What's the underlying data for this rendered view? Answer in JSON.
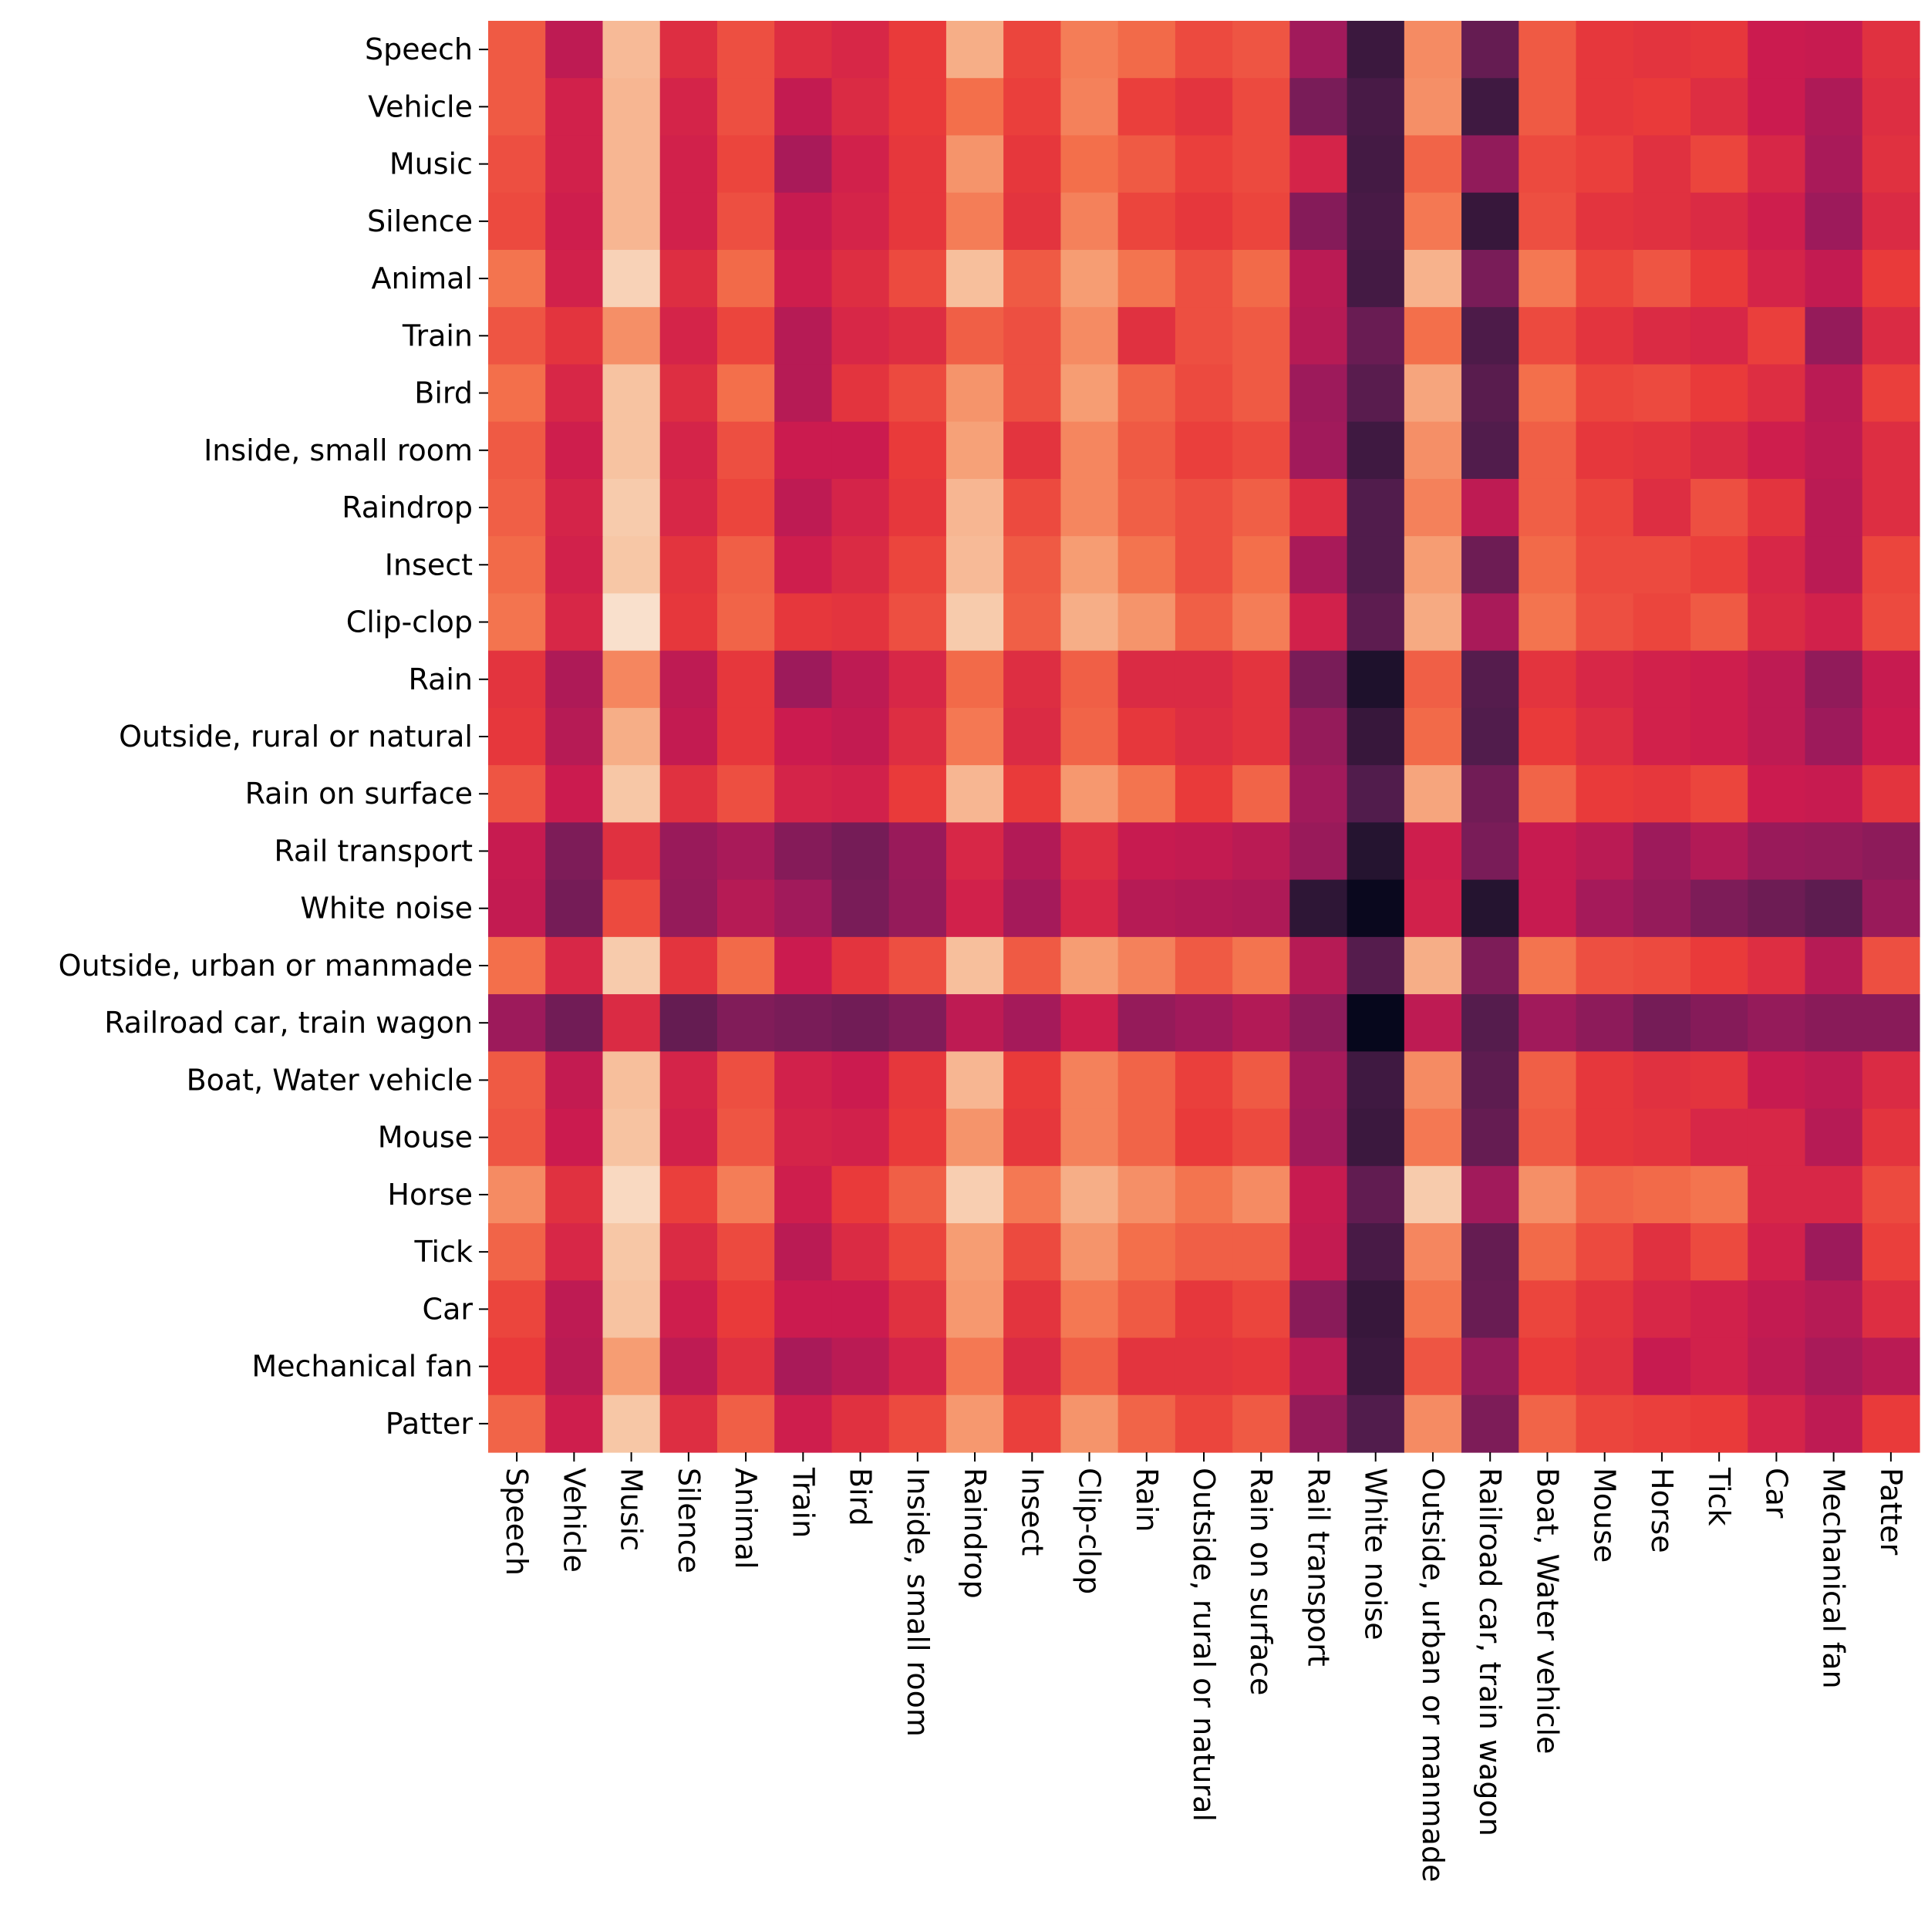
{
  "chart_data": {
    "type": "heatmap",
    "title": "",
    "xlabel": "",
    "ylabel": "",
    "colormap": "rocket",
    "value_range": [
      0,
      1
    ],
    "grid": false,
    "legend": "none",
    "rows": [
      "Speech",
      "Vehicle",
      "Music",
      "Silence",
      "Animal",
      "Train",
      "Bird",
      "Inside, small room",
      "Raindrop",
      "Insect",
      "Clip-clop",
      "Rain",
      "Outside, rural or natural",
      "Rain on surface",
      "Rail transport",
      "White noise",
      "Outside, urban or manmade",
      "Railroad car, train wagon",
      "Boat, Water vehicle",
      "Mouse",
      "Horse",
      "Tick",
      "Car",
      "Mechanical fan",
      "Patter"
    ],
    "columns": [
      "Speech",
      "Vehicle",
      "Music",
      "Silence",
      "Animal",
      "Train",
      "Bird",
      "Inside, small room",
      "Raindrop",
      "Insect",
      "Clip-clop",
      "Rain",
      "Outside, rural or natural",
      "Rain on surface",
      "Rail transport",
      "White noise",
      "Outside, urban or manmade",
      "Railroad car, train wagon",
      "Boat, Water vehicle",
      "Mouse",
      "Horse",
      "Tick",
      "Car",
      "Mechanical fan",
      "Patter"
    ],
    "values": [
      [
        0.66,
        0.47,
        0.87,
        0.56,
        0.64,
        0.56,
        0.54,
        0.6,
        0.84,
        0.62,
        0.73,
        0.69,
        0.63,
        0.65,
        0.4,
        0.15,
        0.76,
        0.25,
        0.66,
        0.59,
        0.58,
        0.59,
        0.5,
        0.49,
        0.57
      ],
      [
        0.66,
        0.52,
        0.86,
        0.53,
        0.64,
        0.48,
        0.55,
        0.6,
        0.7,
        0.61,
        0.74,
        0.61,
        0.58,
        0.63,
        0.3,
        0.18,
        0.77,
        0.16,
        0.66,
        0.59,
        0.6,
        0.56,
        0.5,
        0.43,
        0.56
      ],
      [
        0.64,
        0.52,
        0.86,
        0.52,
        0.62,
        0.42,
        0.52,
        0.59,
        0.78,
        0.59,
        0.7,
        0.66,
        0.61,
        0.63,
        0.53,
        0.17,
        0.68,
        0.36,
        0.63,
        0.61,
        0.57,
        0.62,
        0.54,
        0.42,
        0.57
      ],
      [
        0.63,
        0.51,
        0.86,
        0.52,
        0.64,
        0.49,
        0.53,
        0.59,
        0.73,
        0.58,
        0.74,
        0.62,
        0.59,
        0.62,
        0.33,
        0.18,
        0.72,
        0.14,
        0.64,
        0.58,
        0.57,
        0.55,
        0.51,
        0.39,
        0.55
      ],
      [
        0.71,
        0.52,
        0.93,
        0.56,
        0.69,
        0.51,
        0.56,
        0.63,
        0.88,
        0.66,
        0.8,
        0.71,
        0.64,
        0.69,
        0.46,
        0.17,
        0.85,
        0.3,
        0.72,
        0.62,
        0.65,
        0.6,
        0.53,
        0.48,
        0.6
      ],
      [
        0.65,
        0.58,
        0.77,
        0.53,
        0.62,
        0.45,
        0.54,
        0.56,
        0.67,
        0.64,
        0.76,
        0.57,
        0.64,
        0.66,
        0.45,
        0.26,
        0.7,
        0.19,
        0.63,
        0.58,
        0.55,
        0.54,
        0.61,
        0.37,
        0.55
      ],
      [
        0.7,
        0.54,
        0.89,
        0.56,
        0.7,
        0.45,
        0.58,
        0.63,
        0.78,
        0.64,
        0.8,
        0.68,
        0.63,
        0.66,
        0.39,
        0.22,
        0.82,
        0.22,
        0.7,
        0.62,
        0.63,
        0.6,
        0.56,
        0.46,
        0.61
      ],
      [
        0.66,
        0.51,
        0.89,
        0.53,
        0.64,
        0.5,
        0.5,
        0.6,
        0.81,
        0.58,
        0.75,
        0.66,
        0.61,
        0.63,
        0.4,
        0.16,
        0.77,
        0.2,
        0.67,
        0.59,
        0.58,
        0.55,
        0.51,
        0.47,
        0.56
      ],
      [
        0.67,
        0.53,
        0.91,
        0.54,
        0.62,
        0.47,
        0.53,
        0.59,
        0.86,
        0.63,
        0.75,
        0.67,
        0.64,
        0.67,
        0.56,
        0.2,
        0.74,
        0.47,
        0.67,
        0.62,
        0.56,
        0.64,
        0.58,
        0.46,
        0.56
      ],
      [
        0.69,
        0.52,
        0.9,
        0.58,
        0.67,
        0.51,
        0.55,
        0.62,
        0.87,
        0.66,
        0.8,
        0.71,
        0.64,
        0.7,
        0.42,
        0.2,
        0.8,
        0.27,
        0.69,
        0.63,
        0.63,
        0.61,
        0.54,
        0.46,
        0.62
      ],
      [
        0.71,
        0.54,
        0.97,
        0.59,
        0.68,
        0.59,
        0.58,
        0.64,
        0.91,
        0.67,
        0.84,
        0.78,
        0.67,
        0.73,
        0.52,
        0.23,
        0.83,
        0.42,
        0.71,
        0.64,
        0.62,
        0.66,
        0.55,
        0.52,
        0.63
      ],
      [
        0.58,
        0.43,
        0.75,
        0.47,
        0.59,
        0.39,
        0.47,
        0.54,
        0.69,
        0.56,
        0.67,
        0.55,
        0.55,
        0.58,
        0.3,
        0.08,
        0.67,
        0.21,
        0.58,
        0.54,
        0.52,
        0.51,
        0.47,
        0.36,
        0.49
      ],
      [
        0.59,
        0.45,
        0.84,
        0.48,
        0.59,
        0.5,
        0.48,
        0.56,
        0.72,
        0.55,
        0.68,
        0.59,
        0.56,
        0.58,
        0.37,
        0.14,
        0.69,
        0.2,
        0.6,
        0.56,
        0.52,
        0.51,
        0.47,
        0.39,
        0.5
      ],
      [
        0.65,
        0.5,
        0.9,
        0.57,
        0.64,
        0.53,
        0.52,
        0.6,
        0.86,
        0.6,
        0.79,
        0.71,
        0.6,
        0.68,
        0.4,
        0.2,
        0.82,
        0.28,
        0.68,
        0.6,
        0.59,
        0.62,
        0.5,
        0.49,
        0.58
      ],
      [
        0.49,
        0.31,
        0.57,
        0.38,
        0.42,
        0.33,
        0.29,
        0.38,
        0.54,
        0.44,
        0.56,
        0.49,
        0.48,
        0.46,
        0.38,
        0.1,
        0.51,
        0.3,
        0.49,
        0.46,
        0.39,
        0.44,
        0.38,
        0.37,
        0.35
      ],
      [
        0.48,
        0.29,
        0.63,
        0.37,
        0.45,
        0.4,
        0.3,
        0.37,
        0.52,
        0.41,
        0.54,
        0.45,
        0.44,
        0.43,
        0.12,
        0.02,
        0.52,
        0.1,
        0.49,
        0.41,
        0.37,
        0.31,
        0.27,
        0.23,
        0.38
      ],
      [
        0.7,
        0.54,
        0.91,
        0.58,
        0.69,
        0.5,
        0.58,
        0.64,
        0.88,
        0.66,
        0.8,
        0.74,
        0.66,
        0.71,
        0.45,
        0.21,
        0.84,
        0.31,
        0.71,
        0.64,
        0.63,
        0.6,
        0.56,
        0.45,
        0.64
      ],
      [
        0.39,
        0.28,
        0.55,
        0.25,
        0.32,
        0.3,
        0.28,
        0.32,
        0.47,
        0.41,
        0.51,
        0.37,
        0.4,
        0.44,
        0.35,
        0.01,
        0.47,
        0.21,
        0.4,
        0.35,
        0.29,
        0.33,
        0.37,
        0.34,
        0.34
      ],
      [
        0.66,
        0.48,
        0.88,
        0.53,
        0.64,
        0.52,
        0.5,
        0.59,
        0.86,
        0.6,
        0.74,
        0.68,
        0.61,
        0.66,
        0.41,
        0.16,
        0.76,
        0.23,
        0.67,
        0.59,
        0.57,
        0.58,
        0.49,
        0.47,
        0.55
      ],
      [
        0.65,
        0.5,
        0.89,
        0.52,
        0.65,
        0.53,
        0.52,
        0.6,
        0.78,
        0.59,
        0.74,
        0.68,
        0.6,
        0.63,
        0.4,
        0.15,
        0.72,
        0.25,
        0.66,
        0.59,
        0.58,
        0.54,
        0.54,
        0.45,
        0.58
      ],
      [
        0.76,
        0.57,
        0.95,
        0.61,
        0.73,
        0.51,
        0.6,
        0.67,
        0.92,
        0.72,
        0.84,
        0.77,
        0.71,
        0.76,
        0.49,
        0.24,
        0.91,
        0.4,
        0.77,
        0.68,
        0.69,
        0.71,
        0.54,
        0.54,
        0.63
      ],
      [
        0.68,
        0.54,
        0.9,
        0.55,
        0.63,
        0.46,
        0.55,
        0.62,
        0.8,
        0.63,
        0.78,
        0.7,
        0.67,
        0.67,
        0.48,
        0.18,
        0.75,
        0.25,
        0.69,
        0.63,
        0.57,
        0.63,
        0.52,
        0.39,
        0.61
      ],
      [
        0.62,
        0.47,
        0.89,
        0.51,
        0.6,
        0.5,
        0.5,
        0.57,
        0.79,
        0.58,
        0.72,
        0.66,
        0.59,
        0.62,
        0.34,
        0.14,
        0.71,
        0.26,
        0.62,
        0.58,
        0.54,
        0.52,
        0.48,
        0.45,
        0.56
      ],
      [
        0.6,
        0.46,
        0.8,
        0.47,
        0.57,
        0.42,
        0.46,
        0.53,
        0.72,
        0.55,
        0.67,
        0.58,
        0.58,
        0.59,
        0.46,
        0.15,
        0.65,
        0.37,
        0.6,
        0.57,
        0.49,
        0.52,
        0.47,
        0.42,
        0.46
      ],
      [
        0.68,
        0.51,
        0.9,
        0.56,
        0.67,
        0.51,
        0.57,
        0.63,
        0.79,
        0.61,
        0.78,
        0.68,
        0.62,
        0.66,
        0.37,
        0.2,
        0.76,
        0.31,
        0.68,
        0.62,
        0.61,
        0.6,
        0.53,
        0.47,
        0.6
      ]
    ]
  }
}
